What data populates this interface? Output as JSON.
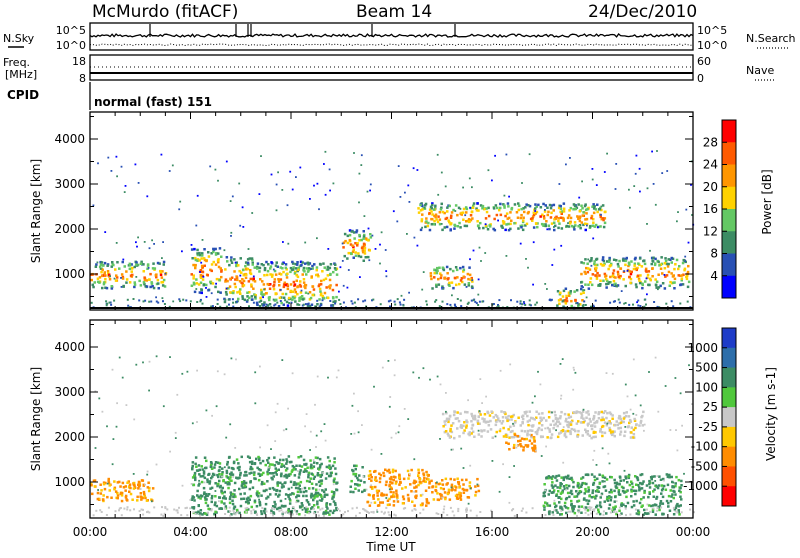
{
  "header": {
    "station": "McMurdo (fitACF)",
    "beam": "Beam 14",
    "date": "24/Dec/2010"
  },
  "noise_panel": {
    "left_label": "N.Sky",
    "right_label": "N.Search",
    "left_ticks": [
      "10^5",
      "10^0"
    ],
    "right_ticks": [
      "10^5",
      "10^0"
    ]
  },
  "freq_panel": {
    "left_label_1": "Freq.",
    "left_label_2": "[MHz]",
    "right_label": "Nave",
    "left_ticks": [
      "18",
      "8"
    ],
    "right_ticks": [
      "60",
      "0"
    ]
  },
  "cpid": {
    "label": "CPID",
    "value": "normal (fast) 151"
  },
  "x_axis": {
    "title": "Time UT",
    "ticks": [
      "00:00",
      "04:00",
      "08:00",
      "12:00",
      "16:00",
      "20:00",
      "00:00"
    ]
  },
  "chart_data": [
    {
      "type": "heatmap",
      "quantity": "Power",
      "ylabel": "Slant Range [km]",
      "yticks": [
        1000,
        2000,
        3000,
        4000
      ],
      "ylim": [
        200,
        4600
      ],
      "xlim_hours": [
        0,
        24
      ],
      "colorbar": {
        "label": "Power [dB]",
        "ticks": [
          "28",
          "24",
          "20",
          "16",
          "12",
          "8",
          "4"
        ],
        "colors": [
          "#ff0000",
          "#ff5a00",
          "#ff9600",
          "#ffd200",
          "#64c864",
          "#3c8c64",
          "#2850b4",
          "#0000ff"
        ]
      },
      "echo_regions": [
        {
          "t_start": 0.0,
          "t_end": 3.0,
          "range_start": 700,
          "range_end": 1300,
          "level": "12-24 dB"
        },
        {
          "t_start": 4.0,
          "t_end": 5.2,
          "range_start": 600,
          "range_end": 1600,
          "level": "16-28 dB"
        },
        {
          "t_start": 5.3,
          "t_end": 6.5,
          "range_start": 400,
          "range_end": 1400,
          "level": "20-28 dB"
        },
        {
          "t_start": 6.5,
          "t_end": 9.8,
          "range_start": 300,
          "range_end": 1300,
          "level": "16-28 dB"
        },
        {
          "t_start": 10.0,
          "t_end": 11.2,
          "range_start": 1300,
          "range_end": 2000,
          "level": "8-16 dB"
        },
        {
          "t_start": 13.5,
          "t_end": 15.2,
          "range_start": 700,
          "range_end": 1200,
          "level": "12-20 dB"
        },
        {
          "t_start": 13.0,
          "t_end": 20.5,
          "range_start": 2000,
          "range_end": 2600,
          "level": "8-16 dB"
        },
        {
          "t_start": 18.5,
          "t_end": 19.6,
          "range_start": 250,
          "range_end": 700,
          "level": "16-20 dB"
        },
        {
          "t_start": 19.5,
          "t_end": 23.8,
          "range_start": 700,
          "range_end": 1400,
          "level": "8-16 dB"
        }
      ]
    },
    {
      "type": "heatmap",
      "quantity": "Velocity",
      "ylabel": "Slant Range [km]",
      "yticks": [
        1000,
        2000,
        3000,
        4000
      ],
      "ylim": [
        200,
        4600
      ],
      "xlim_hours": [
        0,
        24
      ],
      "colorbar": {
        "label": "Velocity [m s-1]",
        "ticks": [
          "1000",
          "500",
          "100",
          "25",
          "-25",
          "-100",
          "-500",
          "-1000"
        ],
        "colors": [
          "#1e3cc8",
          "#2d6eaa",
          "#3c8c64",
          "#50c83c",
          "#c8c8c8",
          "#ffc800",
          "#ff8c00",
          "#ff5000",
          "#ff0000"
        ]
      },
      "echo_regions": [
        {
          "t_start": 0.0,
          "t_end": 2.5,
          "range_start": 600,
          "range_end": 1100,
          "level": "-100 to -500"
        },
        {
          "t_start": 4.0,
          "t_end": 9.8,
          "range_start": 300,
          "range_end": 1600,
          "level": "25 to 100"
        },
        {
          "t_start": 10.3,
          "t_end": 10.9,
          "range_start": 800,
          "range_end": 1400,
          "level": "25 to 100"
        },
        {
          "t_start": 11.0,
          "t_end": 13.5,
          "range_start": 500,
          "range_end": 1300,
          "level": "-100 to -500"
        },
        {
          "t_start": 13.5,
          "t_end": 15.5,
          "range_start": 600,
          "range_end": 1100,
          "level": "-100 to -500"
        },
        {
          "t_start": 14.0,
          "t_end": 22.0,
          "range_start": 2000,
          "range_end": 2600,
          "level": "-25 to 25"
        },
        {
          "t_start": 16.5,
          "t_end": 17.7,
          "range_start": 1700,
          "range_end": 2100,
          "level": "-100 to -500"
        },
        {
          "t_start": 18.0,
          "t_end": 23.5,
          "range_start": 300,
          "range_end": 1200,
          "level": "25 to 100"
        }
      ]
    }
  ]
}
